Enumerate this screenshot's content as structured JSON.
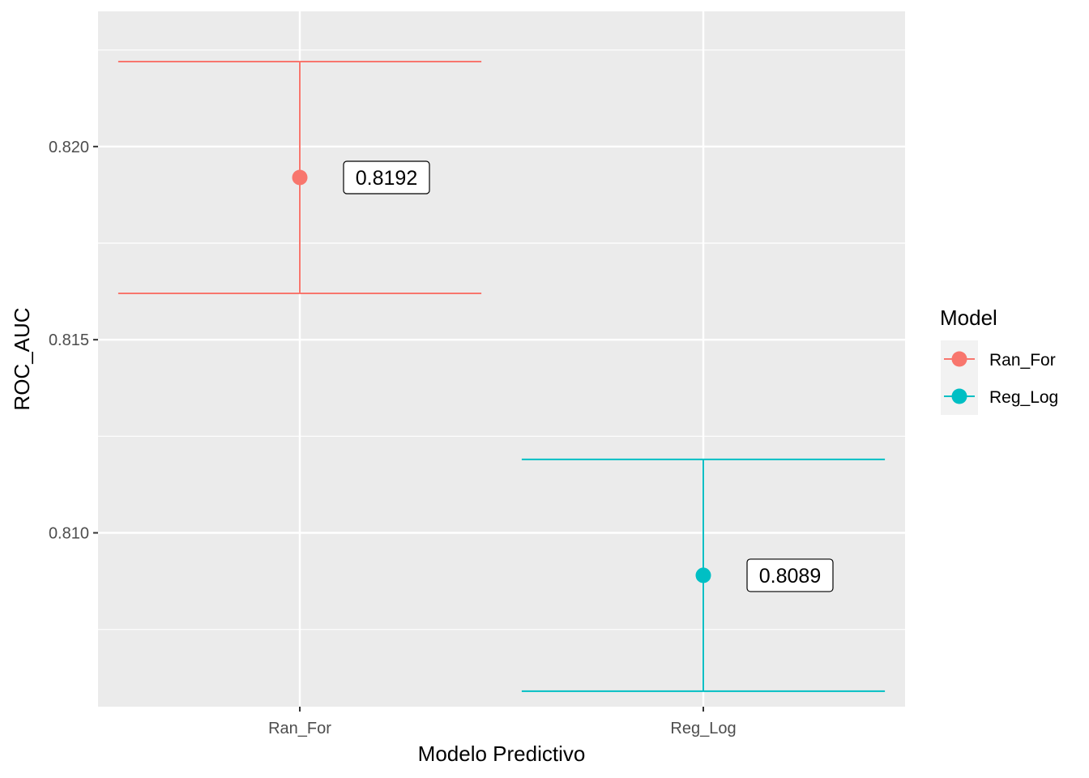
{
  "chart_data": {
    "type": "errorbar",
    "xlabel": "Modelo Predictivo",
    "ylabel": "ROC_AUC",
    "categories": [
      "Ran_For",
      "Reg_Log"
    ],
    "ylim": [
      0.8055,
      0.8235
    ],
    "yticks": [
      0.81,
      0.815,
      0.82
    ],
    "ytick_labels": [
      "0.810",
      "0.815",
      "0.820"
    ],
    "grid": true,
    "series": [
      {
        "name": "Ran_For",
        "category": "Ran_For",
        "mean": 0.8192,
        "lower": 0.8162,
        "upper": 0.8222,
        "label": "0.8192",
        "color": "#F8766D"
      },
      {
        "name": "Reg_Log",
        "category": "Reg_Log",
        "mean": 0.8089,
        "lower": 0.8059,
        "upper": 0.8119,
        "label": "0.8089",
        "color": "#00BFC4"
      }
    ],
    "legend": {
      "title": "Model",
      "position": "right",
      "entries": [
        "Ran_For",
        "Reg_Log"
      ]
    }
  }
}
